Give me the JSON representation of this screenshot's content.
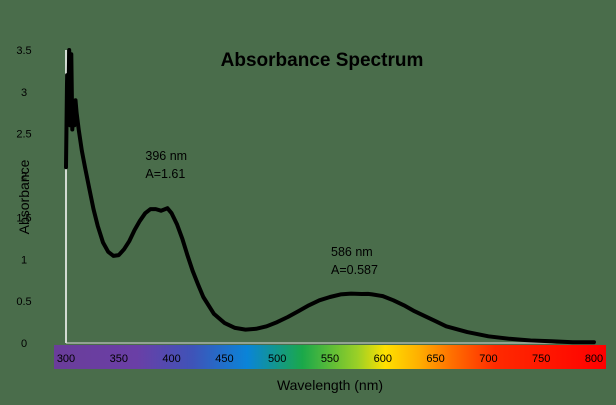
{
  "chart_data": {
    "type": "line",
    "title": "Absorbance Spectrum",
    "xlabel": "Wavelength (nm)",
    "ylabel": "Absorbance",
    "xlim": [
      300,
      800
    ],
    "ylim": [
      0,
      3.5
    ],
    "x_ticks": [
      "300",
      "350",
      "400",
      "450",
      "500",
      "550",
      "600",
      "650",
      "700",
      "750",
      "800"
    ],
    "y_ticks": [
      "0",
      "0.5",
      "1",
      "1.5",
      "2",
      "2.5",
      "3",
      "3.5"
    ],
    "grid": false,
    "legend": "none",
    "x_axis_spectrum_band": true,
    "line_color": "#000000",
    "background_color": "#4a6d4b",
    "series": [
      {
        "values_x": [
          300,
          301,
          302,
          303,
          304,
          305,
          306,
          307,
          308,
          309,
          310,
          312,
          315,
          318,
          322,
          326,
          330,
          335,
          340,
          345,
          350,
          355,
          360,
          365,
          370,
          375,
          380,
          385,
          390,
          396,
          400,
          405,
          410,
          415,
          420,
          425,
          430,
          440,
          450,
          460,
          470,
          480,
          490,
          500,
          510,
          520,
          530,
          540,
          550,
          560,
          570,
          580,
          586,
          590,
          600,
          610,
          620,
          630,
          640,
          650,
          660,
          680,
          700,
          720,
          740,
          760,
          780,
          800
        ],
        "values_y": [
          2.1,
          3.2,
          2.7,
          3.5,
          2.6,
          3.45,
          2.55,
          2.8,
          2.6,
          2.9,
          2.75,
          2.55,
          2.3,
          2.1,
          1.85,
          1.6,
          1.4,
          1.2,
          1.09,
          1.04,
          1.05,
          1.12,
          1.22,
          1.35,
          1.46,
          1.55,
          1.6,
          1.6,
          1.58,
          1.61,
          1.55,
          1.42,
          1.25,
          1.05,
          0.86,
          0.7,
          0.55,
          0.35,
          0.24,
          0.18,
          0.16,
          0.17,
          0.2,
          0.25,
          0.31,
          0.38,
          0.45,
          0.51,
          0.55,
          0.58,
          0.59,
          0.585,
          0.587,
          0.58,
          0.56,
          0.51,
          0.45,
          0.38,
          0.32,
          0.26,
          0.2,
          0.13,
          0.08,
          0.05,
          0.03,
          0.02,
          0.01,
          0.01
        ]
      }
    ],
    "annotations": [
      {
        "x": 396,
        "y": 1.61,
        "line1": "396 nm",
        "line2": "A=1.61"
      },
      {
        "x": 586,
        "y": 0.587,
        "line1": "586 nm",
        "line2": "A=0.587"
      }
    ]
  }
}
